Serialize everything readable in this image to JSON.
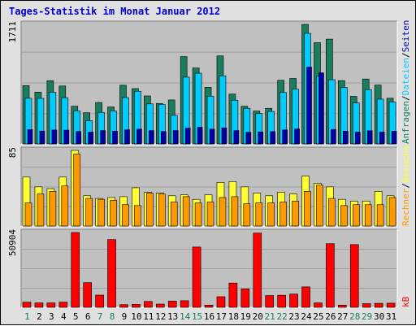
{
  "title": "Tages-Statistik im Monat Januar 2012",
  "colors": {
    "background": "#e0e0e0",
    "panel": "#c0c0c0",
    "title": "#0000cc",
    "anfragen": "#1a7d5e",
    "dateien": "#00ccff",
    "seiten": "#0000aa",
    "besuche": "#ffff33",
    "rechner": "#ff9900",
    "kb": "#ff0000",
    "weekday_label": "#000000",
    "weekend_label": "#1a7d5e"
  },
  "chart_data": [
    {
      "type": "bar",
      "name": "hits-files-pages",
      "max_label": "1711",
      "ylim": [
        0,
        1711
      ],
      "categories": [
        "1",
        "2",
        "3",
        "4",
        "5",
        "6",
        "7",
        "8",
        "9",
        "10",
        "11",
        "12",
        "13",
        "14",
        "15",
        "16",
        "17",
        "18",
        "19",
        "20",
        "21",
        "22",
        "23",
        "24",
        "25",
        "26",
        "27",
        "28",
        "29",
        "30",
        "31"
      ],
      "legend": [
        "Anfragen",
        "/",
        "Dateien",
        "/",
        "Seiten"
      ],
      "series": [
        {
          "name": "Anfragen",
          "values": [
            835,
            741,
            905,
            829,
            539,
            446,
            593,
            529,
            840,
            792,
            687,
            579,
            629,
            1250,
            1087,
            811,
            1260,
            713,
            539,
            471,
            509,
            911,
            937,
            1711,
            1449,
            1500,
            906,
            681,
            929,
            842,
            654
          ]
        },
        {
          "name": "Dateien",
          "values": [
            653,
            652,
            739,
            661,
            472,
            333,
            451,
            471,
            663,
            753,
            573,
            565,
            409,
            955,
            1012,
            684,
            975,
            626,
            510,
            434,
            465,
            736,
            783,
            1583,
            968,
            919,
            809,
            586,
            778,
            641,
            599
          ]
        },
        {
          "name": "Seiten",
          "values": [
            206,
            184,
            199,
            197,
            178,
            169,
            191,
            182,
            203,
            211,
            190,
            178,
            191,
            226,
            239,
            211,
            229,
            190,
            166,
            172,
            176,
            201,
            214,
            1100,
            1018,
            207,
            182,
            169,
            188,
            171,
            181
          ]
        }
      ]
    },
    {
      "type": "bar",
      "name": "visits-sites",
      "max_label": "85",
      "ylim": [
        0,
        85
      ],
      "categories": [
        "1",
        "2",
        "3",
        "4",
        "5",
        "6",
        "7",
        "8",
        "9",
        "10",
        "11",
        "12",
        "13",
        "14",
        "15",
        "16",
        "17",
        "18",
        "19",
        "20",
        "21",
        "22",
        "23",
        "24",
        "25",
        "26",
        "27",
        "28",
        "29",
        "30",
        "31"
      ],
      "legend": [
        "Rechner",
        "/",
        "Besuche"
      ],
      "series": [
        {
          "name": "Besuche",
          "values": [
            55,
            44,
            42,
            55,
            85,
            34,
            31,
            32,
            33,
            43,
            38,
            37,
            34,
            35,
            30,
            35,
            49,
            50,
            44,
            37,
            34,
            38,
            36,
            56,
            48,
            44,
            30,
            28,
            28,
            39,
            34
          ]
        },
        {
          "name": "Rechner",
          "values": [
            26,
            36,
            39,
            45,
            81,
            31,
            30,
            29,
            24,
            23,
            37,
            36,
            27,
            33,
            26,
            27,
            32,
            33,
            25,
            26,
            26,
            27,
            28,
            39,
            46,
            31,
            23,
            24,
            24,
            24,
            32
          ]
        }
      ]
    },
    {
      "type": "bar",
      "name": "kb",
      "max_label": "50904",
      "ylim": [
        0,
        50904
      ],
      "categories": [
        "1",
        "2",
        "3",
        "4",
        "5",
        "6",
        "7",
        "8",
        "9",
        "10",
        "11",
        "12",
        "13",
        "14",
        "15",
        "16",
        "17",
        "18",
        "19",
        "20",
        "21",
        "22",
        "23",
        "24",
        "25",
        "26",
        "27",
        "28",
        "29",
        "30",
        "31"
      ],
      "legend": [
        "kB"
      ],
      "series": [
        {
          "name": "kB",
          "values": [
            3500,
            3000,
            3000,
            3500,
            50904,
            16800,
            8300,
            46100,
            1800,
            2000,
            4000,
            2200,
            4200,
            4500,
            41000,
            1500,
            7200,
            16500,
            12500,
            50500,
            8000,
            8200,
            9000,
            13900,
            3000,
            43300,
            1500,
            42700,
            2500,
            2700,
            2800
          ]
        }
      ]
    }
  ],
  "days": [
    "1",
    "2",
    "3",
    "4",
    "5",
    "6",
    "7",
    "8",
    "9",
    "10",
    "11",
    "12",
    "13",
    "14",
    "15",
    "16",
    "17",
    "18",
    "19",
    "20",
    "21",
    "22",
    "23",
    "24",
    "25",
    "26",
    "27",
    "28",
    "29",
    "30",
    "31"
  ],
  "weekend_days": [
    "1",
    "7",
    "8",
    "14",
    "15",
    "21",
    "22",
    "28",
    "29"
  ]
}
